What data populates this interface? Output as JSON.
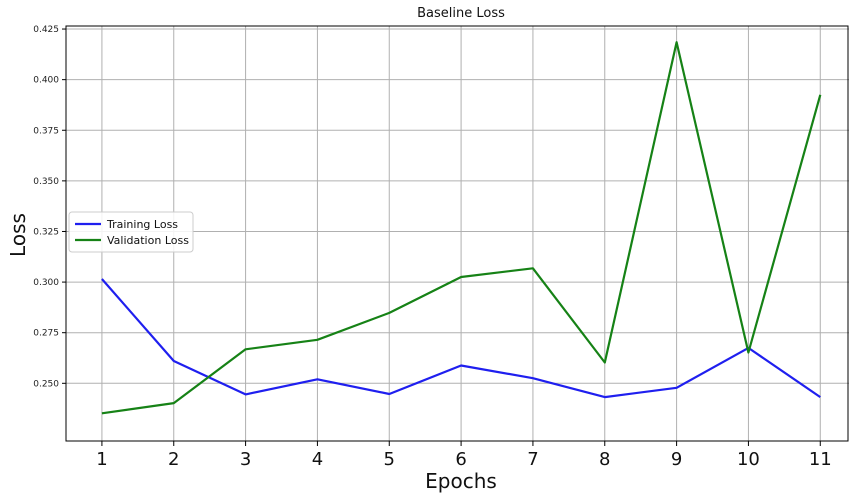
{
  "chart_data": {
    "type": "line",
    "title": "Baseline Loss",
    "xlabel": "Epochs",
    "ylabel": "Loss",
    "x": [
      1,
      2,
      3,
      4,
      5,
      6,
      7,
      8,
      9,
      10,
      11
    ],
    "xlim": [
      0.5,
      11.4
    ],
    "ylim": [
      0.2215,
      0.4265
    ],
    "yticks": [
      "0.250",
      "0.275",
      "0.300",
      "0.325",
      "0.350",
      "0.375",
      "0.400",
      "0.425"
    ],
    "ytick_values": [
      0.25,
      0.275,
      0.3,
      0.325,
      0.35,
      0.375,
      0.4,
      0.425
    ],
    "grid": true,
    "legend_position": "center-left",
    "series": [
      {
        "name": "Training Loss",
        "color": "#1f1fef",
        "values": [
          0.3015,
          0.261,
          0.2445,
          0.252,
          0.2447,
          0.2588,
          0.2525,
          0.2432,
          0.2478,
          0.2675,
          0.2432
        ]
      },
      {
        "name": "Validation Loss",
        "color": "#168216",
        "values": [
          0.2352,
          0.2402,
          0.2668,
          0.2715,
          0.2848,
          0.3025,
          0.3068,
          0.2603,
          0.4185,
          0.2652,
          0.3925
        ]
      }
    ]
  }
}
